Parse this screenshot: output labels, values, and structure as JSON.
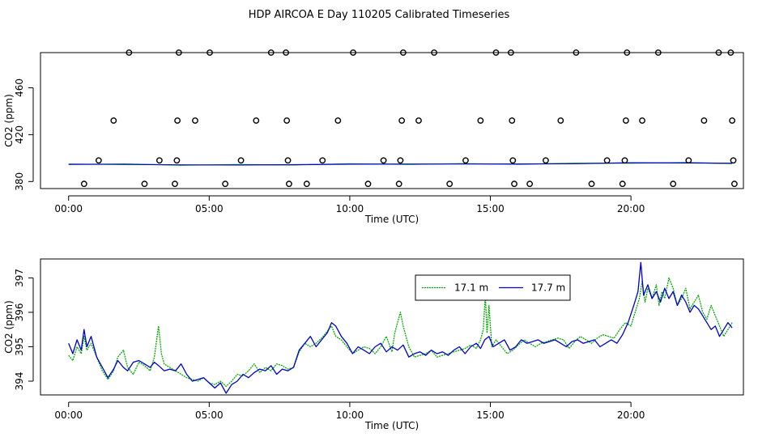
{
  "title": "HDP AIRCOA E  Day 110205  Calibrated Timeseries",
  "chart_data": [
    {
      "type": "scatter",
      "xlabel": "Time (UTC)",
      "ylabel": "CO2 (ppm)",
      "xlim": [
        -1,
        24
      ],
      "ylim": [
        374,
        490
      ],
      "x_ticks": [
        0,
        5,
        10,
        15,
        20
      ],
      "x_tick_labels": [
        "00:00",
        "05:00",
        "10:00",
        "15:00",
        "20:00"
      ],
      "y_ticks": [
        380,
        420,
        460
      ],
      "y_tick_labels": [
        "380",
        "420",
        "460"
      ],
      "grid": false,
      "baseline_series": {
        "color_green": "#00aa00",
        "color_blue": "#0000cc",
        "x": [
          0,
          2,
          4,
          6,
          8,
          10,
          12,
          14,
          16,
          18,
          20,
          22,
          23.6
        ],
        "y": [
          394.8,
          394.6,
          394.2,
          394.1,
          394.4,
          394.8,
          394.9,
          394.9,
          395.0,
          395.2,
          396.0,
          395.8,
          395.6
        ]
      },
      "points": {
        "x": [
          0.55,
          1.07,
          1.6,
          2.15,
          2.7,
          3.23,
          3.78,
          3.85,
          3.87,
          3.92,
          4.5,
          5.02,
          5.57,
          6.13,
          6.67,
          7.2,
          7.73,
          7.76,
          7.8,
          7.84,
          8.47,
          9.03,
          9.58,
          10.12,
          10.65,
          11.2,
          11.75,
          11.8,
          11.85,
          11.9,
          12.45,
          13.0,
          13.55,
          14.12,
          14.65,
          15.2,
          15.73,
          15.77,
          15.8,
          15.85,
          16.4,
          16.97,
          17.5,
          18.05,
          18.6,
          19.15,
          19.7,
          19.78,
          19.82,
          19.86,
          20.4,
          20.97,
          21.5,
          22.05,
          22.6,
          23.12,
          23.55,
          23.6,
          23.64,
          23.68
        ],
        "y": [
          378,
          398,
          432,
          490,
          378,
          398,
          378,
          398,
          432,
          490,
          432,
          490,
          378,
          398,
          432,
          490,
          490,
          432,
          398,
          378,
          378,
          398,
          432,
          490,
          378,
          398,
          378,
          398,
          432,
          490,
          432,
          490,
          378,
          398,
          432,
          490,
          490,
          432,
          398,
          378,
          378,
          398,
          432,
          490,
          378,
          398,
          378,
          398,
          432,
          490,
          432,
          490,
          378,
          398,
          432,
          490,
          490,
          432,
          398,
          378
        ]
      }
    },
    {
      "type": "line",
      "xlabel": "Time (UTC)",
      "ylabel": "CO2 (ppm)",
      "xlim": [
        -1,
        24
      ],
      "ylim": [
        393.6,
        397.55
      ],
      "x_ticks": [
        0,
        5,
        10,
        15,
        20
      ],
      "x_tick_labels": [
        "00:00",
        "05:00",
        "10:00",
        "15:00",
        "20:00"
      ],
      "y_ticks": [
        394,
        395,
        396,
        397
      ],
      "y_tick_labels": [
        "394",
        "395",
        "396",
        "397"
      ],
      "grid": false,
      "legend": "top-center",
      "series": [
        {
          "name": "17.1 m",
          "color": "#00aa00",
          "style": "dotted",
          "x": [
            0.0,
            0.15,
            0.3,
            0.45,
            0.55,
            0.65,
            0.8,
            1.0,
            1.2,
            1.4,
            1.6,
            1.75,
            1.95,
            2.1,
            2.3,
            2.5,
            2.7,
            2.9,
            3.05,
            3.2,
            3.3,
            3.4,
            3.6,
            3.8,
            4.0,
            4.2,
            4.4,
            4.6,
            4.8,
            5.0,
            5.2,
            5.4,
            5.6,
            5.8,
            6.0,
            6.2,
            6.4,
            6.6,
            6.8,
            7.0,
            7.2,
            7.4,
            7.6,
            7.8,
            8.0,
            8.2,
            8.4,
            8.6,
            8.8,
            9.0,
            9.2,
            9.35,
            9.5,
            9.7,
            9.9,
            10.1,
            10.3,
            10.5,
            10.7,
            10.9,
            11.1,
            11.3,
            11.5,
            11.6,
            11.7,
            11.8,
            11.9,
            12.1,
            12.3,
            12.5,
            12.7,
            12.9,
            13.1,
            13.3,
            13.5,
            13.7,
            13.9,
            14.1,
            14.3,
            14.5,
            14.65,
            14.75,
            14.82,
            14.88,
            14.95,
            15.05,
            15.2,
            15.4,
            15.6,
            15.8,
            16.0,
            16.2,
            16.4,
            16.6,
            16.8,
            17.0,
            17.2,
            17.4,
            17.6,
            17.8,
            18.0,
            18.2,
            18.4,
            18.6,
            18.8,
            19.0,
            19.2,
            19.4,
            19.6,
            19.8,
            20.0,
            20.15,
            20.3,
            20.4,
            20.5,
            20.6,
            20.75,
            20.9,
            21.0,
            21.1,
            21.2,
            21.35,
            21.5,
            21.65,
            21.8,
            21.95,
            22.1,
            22.25,
            22.4,
            22.55,
            22.7,
            22.85,
            23.0,
            23.15,
            23.3,
            23.45,
            23.6
          ],
          "y": [
            394.75,
            394.6,
            395.0,
            394.8,
            395.3,
            394.9,
            395.1,
            394.7,
            394.3,
            394.05,
            394.3,
            394.7,
            394.9,
            394.4,
            394.2,
            394.55,
            394.45,
            394.3,
            394.7,
            395.6,
            394.8,
            394.5,
            394.4,
            394.3,
            394.2,
            394.1,
            394.05,
            394.0,
            394.1,
            393.95,
            393.9,
            394.0,
            393.85,
            394.0,
            394.2,
            394.15,
            394.3,
            394.5,
            394.25,
            394.4,
            394.3,
            394.5,
            394.45,
            394.35,
            394.4,
            394.85,
            395.1,
            395.0,
            395.1,
            395.25,
            395.45,
            395.6,
            395.3,
            395.2,
            395.0,
            394.8,
            394.9,
            395.0,
            394.95,
            394.8,
            395.0,
            395.3,
            394.85,
            395.4,
            395.7,
            396.0,
            395.6,
            395.0,
            394.7,
            394.75,
            394.8,
            394.9,
            394.7,
            394.75,
            394.8,
            394.85,
            394.9,
            394.95,
            395.05,
            394.95,
            395.2,
            395.5,
            396.5,
            395.4,
            396.2,
            395.0,
            395.2,
            395.0,
            394.8,
            394.9,
            395.05,
            395.2,
            395.1,
            395.0,
            395.1,
            395.15,
            395.2,
            395.25,
            395.2,
            394.95,
            395.15,
            395.3,
            395.2,
            395.1,
            395.25,
            395.35,
            395.3,
            395.25,
            395.5,
            395.7,
            395.6,
            396.0,
            396.4,
            396.9,
            396.3,
            396.7,
            396.4,
            396.8,
            396.2,
            396.6,
            396.4,
            397.0,
            396.7,
            396.2,
            396.4,
            396.7,
            396.1,
            396.3,
            396.5,
            396.0,
            395.8,
            396.2,
            395.9,
            395.6,
            395.3,
            395.5,
            395.7
          ],
          "y_note": "estimated from trace"
        },
        {
          "name": "17.7 m",
          "color": "#0000cc",
          "style": "solid",
          "x": [
            0.0,
            0.15,
            0.3,
            0.45,
            0.55,
            0.65,
            0.8,
            1.0,
            1.2,
            1.4,
            1.6,
            1.75,
            1.95,
            2.1,
            2.3,
            2.5,
            2.7,
            2.9,
            3.05,
            3.2,
            3.4,
            3.6,
            3.8,
            4.0,
            4.2,
            4.4,
            4.6,
            4.8,
            5.0,
            5.2,
            5.4,
            5.6,
            5.8,
            6.0,
            6.2,
            6.4,
            6.6,
            6.8,
            7.0,
            7.2,
            7.4,
            7.6,
            7.8,
            8.0,
            8.2,
            8.4,
            8.6,
            8.8,
            9.0,
            9.2,
            9.35,
            9.5,
            9.7,
            9.9,
            10.1,
            10.3,
            10.5,
            10.7,
            10.9,
            11.1,
            11.3,
            11.5,
            11.7,
            11.9,
            12.1,
            12.3,
            12.5,
            12.7,
            12.9,
            13.1,
            13.3,
            13.5,
            13.7,
            13.9,
            14.1,
            14.3,
            14.5,
            14.65,
            14.8,
            14.95,
            15.1,
            15.3,
            15.5,
            15.7,
            15.9,
            16.1,
            16.3,
            16.5,
            16.7,
            16.9,
            17.1,
            17.3,
            17.5,
            17.7,
            17.9,
            18.1,
            18.3,
            18.5,
            18.7,
            18.9,
            19.1,
            19.3,
            19.5,
            19.7,
            19.9,
            20.1,
            20.25,
            20.35,
            20.45,
            20.6,
            20.75,
            20.9,
            21.05,
            21.2,
            21.35,
            21.5,
            21.65,
            21.8,
            21.95,
            22.1,
            22.25,
            22.4,
            22.55,
            22.7,
            22.85,
            23.0,
            23.15,
            23.3,
            23.45,
            23.6
          ],
          "y": [
            395.1,
            394.8,
            395.2,
            394.9,
            395.5,
            395.0,
            395.3,
            394.7,
            394.4,
            394.1,
            394.35,
            394.6,
            394.4,
            394.3,
            394.55,
            394.6,
            394.5,
            394.4,
            394.55,
            394.45,
            394.3,
            394.35,
            394.3,
            394.5,
            394.2,
            394.0,
            394.05,
            394.1,
            393.95,
            393.8,
            393.95,
            393.65,
            393.9,
            394.0,
            394.2,
            394.1,
            394.25,
            394.35,
            394.3,
            394.45,
            394.2,
            394.35,
            394.3,
            394.4,
            394.9,
            395.1,
            395.3,
            395.0,
            395.2,
            395.4,
            395.7,
            395.6,
            395.3,
            395.1,
            394.8,
            395.0,
            394.9,
            394.8,
            395.0,
            395.1,
            394.85,
            395.0,
            394.9,
            395.05,
            394.7,
            394.8,
            394.85,
            394.75,
            394.9,
            394.8,
            394.85,
            394.75,
            394.9,
            395.0,
            394.8,
            395.0,
            395.1,
            394.95,
            395.2,
            395.3,
            395.0,
            395.1,
            395.2,
            394.9,
            395.0,
            395.2,
            395.1,
            395.15,
            395.2,
            395.1,
            395.15,
            395.2,
            395.1,
            395.0,
            395.15,
            395.2,
            395.1,
            395.15,
            395.2,
            395.0,
            395.1,
            395.2,
            395.1,
            395.35,
            395.7,
            396.2,
            396.6,
            397.45,
            396.5,
            396.8,
            396.4,
            396.6,
            396.3,
            396.7,
            396.4,
            396.6,
            396.2,
            396.5,
            396.3,
            396.0,
            396.2,
            396.1,
            395.9,
            395.7,
            395.5,
            395.6,
            395.3,
            395.5,
            395.7,
            395.55
          ],
          "y_note": "estimated from trace"
        }
      ]
    }
  ]
}
